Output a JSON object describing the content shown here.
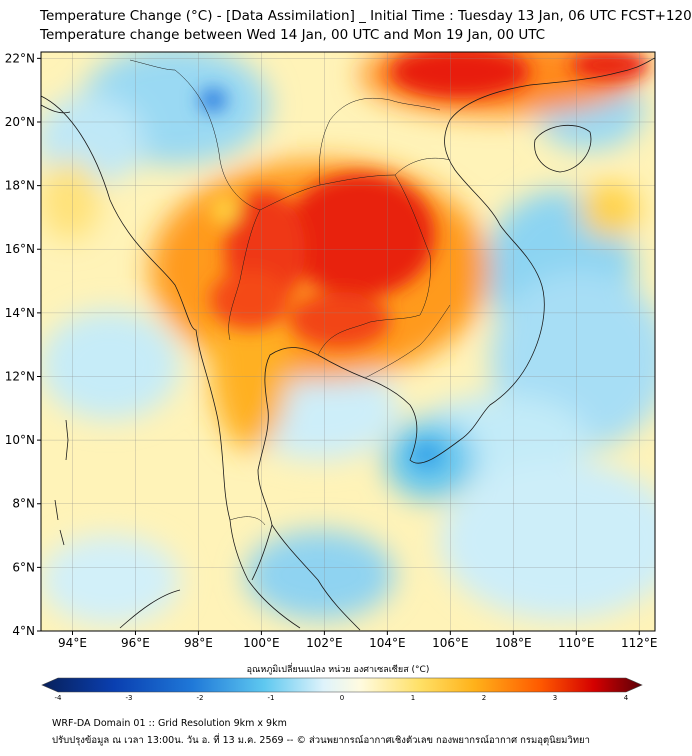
{
  "title": {
    "line1": "Temperature Change (°C) - [Data Assimilation] _ Initial Time : Tuesday 13 Jan, 06 UTC FCST+120",
    "line2": "Temperature change between Wed 14 Jan, 00 UTC and Mon 19 Jan, 00 UTC"
  },
  "map": {
    "lat_ticks": [
      "22°N",
      "20°N",
      "18°N",
      "16°N",
      "14°N",
      "12°N",
      "10°N",
      "8°N",
      "6°N",
      "4°N"
    ],
    "lat_values": [
      22,
      20,
      18,
      16,
      14,
      12,
      10,
      8,
      6,
      4
    ],
    "lon_ticks": [
      "94°E",
      "96°E",
      "98°E",
      "100°E",
      "102°E",
      "104°E",
      "106°E",
      "108°E",
      "110°E",
      "112°E"
    ],
    "lon_values": [
      94,
      96,
      98,
      100,
      102,
      104,
      106,
      108,
      110,
      112
    ],
    "lat_range": [
      4,
      22.2
    ],
    "lon_range": [
      93,
      112.5
    ],
    "grid": true
  },
  "colorbar": {
    "label": "อุณหภูมิเปลี่ยนแปลง หน่วย องศาเซลเซียส (°C)",
    "tick_labels": [
      "-4",
      "-3",
      "-2",
      "-1",
      "0",
      "1",
      "2",
      "3",
      "4"
    ],
    "tick_values": [
      -4,
      -3,
      -2,
      -1,
      0,
      1,
      2,
      3,
      4
    ],
    "range": [
      -4,
      4
    ],
    "colors": {
      "cold_extreme": "#08306b",
      "cold": "#1f78d8",
      "cool": "#5ec8f0",
      "neutral_cool": "#dff3fb",
      "neutral_warm": "#fffbe0",
      "warm": "#ffd92f",
      "hot": "#ff7f00",
      "hot_extreme": "#e31a1c",
      "extreme": "#67000d"
    }
  },
  "footer": {
    "line1": "WRF-DA Domain 01 :: Grid Resolution 9km x 9km",
    "line2": "ปรับปรุงข้อมูล ณ เวลา 13:00น. วัน อ. ที่ 13 ม.ค. 2569 -- © ส่วนพยากรณ์อากาศเชิงตัวเลข กองพยากรณ์อากาศ กรมอุตุนิยมวิทยา"
  }
}
